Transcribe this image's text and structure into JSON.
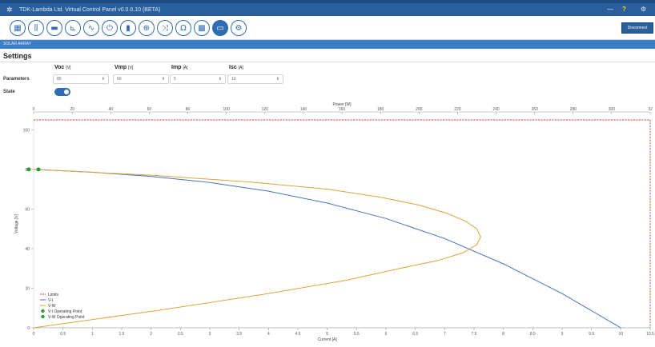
{
  "window": {
    "title": "TDK-Lambda Ltd. Virtual Control Panel v0.0.0.10 (BETA)",
    "controls": [
      "—",
      "?",
      "⚙"
    ]
  },
  "toolbar": {
    "buttons": [
      {
        "icon": "dashboard-icon",
        "glyph": "▦"
      },
      {
        "icon": "sliders-icon",
        "glyph": "⫼"
      },
      {
        "icon": "display-icon",
        "glyph": "▬"
      },
      {
        "icon": "chart-icon",
        "glyph": "⊾"
      },
      {
        "icon": "waveform-icon",
        "glyph": "∿"
      },
      {
        "icon": "power-icon",
        "glyph": "⏻"
      },
      {
        "icon": "battery-icon",
        "glyph": "▮"
      },
      {
        "icon": "globe-icon",
        "glyph": "⊕"
      },
      {
        "icon": "shuffle-icon",
        "glyph": "⤨"
      },
      {
        "icon": "omega-icon",
        "glyph": "Ω"
      },
      {
        "icon": "solar-panel-icon",
        "glyph": "▩"
      },
      {
        "icon": "screen-icon",
        "glyph": "▭"
      },
      {
        "icon": "settings-icon",
        "glyph": "⚙"
      }
    ],
    "active_index": 11,
    "disconnect_label": "Disconnect"
  },
  "breadcrumb": "SOLAR ARRAY",
  "settings": {
    "title": "Settings",
    "parameters_label": "Parameters",
    "state_label": "State",
    "state_on": true,
    "fields": [
      {
        "label": "Voc",
        "unit": "[V]",
        "value": "80"
      },
      {
        "label": "Vmp",
        "unit": "[V]",
        "value": "60"
      },
      {
        "label": "Imp",
        "unit": "[A]",
        "value": "5"
      },
      {
        "label": "Isc",
        "unit": "[A]",
        "value": "10"
      }
    ]
  },
  "colors": {
    "limits": "#e03b2f",
    "vi": "#4472c4",
    "vw": "#e0a23a",
    "operating_point": "#2e9a2e",
    "accent": "#2e6db3"
  },
  "chart_data": {
    "type": "line",
    "top_axis_title": "Power [W]",
    "xlabel": "Current [A]",
    "ylabel": "Voltage [V]",
    "xlim": [
      0,
      10.5
    ],
    "ylim": [
      0,
      105
    ],
    "top_xlim": [
      0,
      320
    ],
    "x_ticks": [
      "0",
      "0.5",
      "1",
      "1.5",
      "2",
      "2.5",
      "3",
      "3.5",
      "4",
      "4.5",
      "5",
      "5.5",
      "6",
      "6.5",
      "7",
      "7.5",
      "8",
      "8.5",
      "9",
      "9.5",
      "10",
      "10.5"
    ],
    "top_ticks": [
      "0",
      "20",
      "40",
      "60",
      "80",
      "100",
      "120",
      "140",
      "160",
      "180",
      "200",
      "220",
      "240",
      "260",
      "280",
      "300",
      "32"
    ],
    "y_ticks": [
      "0",
      "20",
      "40",
      "60",
      "80",
      "100"
    ],
    "grid": false,
    "legend": "bottom-left",
    "series": [
      {
        "name": "Limits",
        "x": [
          0,
          10.5,
          10.5
        ],
        "y": [
          105,
          105,
          0
        ]
      },
      {
        "name": "V-I",
        "x": [
          0,
          1,
          2,
          3,
          4,
          5,
          6,
          7,
          8,
          9,
          10
        ],
        "y": [
          80,
          78.6,
          76.5,
          73.4,
          69,
          63,
          55.2,
          45.1,
          32.3,
          17.3,
          0
        ]
      },
      {
        "name": "V-W",
        "x_top": [
          0,
          62,
          114,
          153,
          180,
          200,
          214,
          224,
          230,
          232,
          230,
          223,
          210,
          190,
          162,
          120,
          66,
          0
        ],
        "y": [
          80,
          77,
          73.5,
          70,
          66,
          62,
          58,
          54,
          50,
          46,
          42,
          38,
          34,
          30,
          24,
          17,
          9,
          0
        ]
      },
      {
        "name": "V-I Operating Point",
        "x": [
          0
        ],
        "y": [
          80
        ]
      },
      {
        "name": "V-W Operating Point",
        "x_top": [
          0
        ],
        "y": [
          80
        ]
      }
    ],
    "legend_items": [
      "Limits",
      "V-I",
      "V-W",
      "V-I Operating Point",
      "V-W Operating Point"
    ]
  }
}
